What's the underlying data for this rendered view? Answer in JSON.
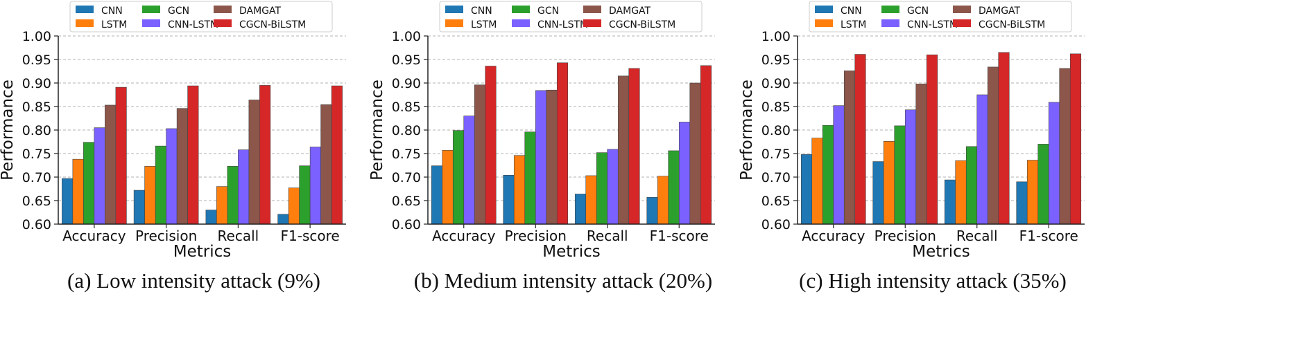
{
  "legend": [
    {
      "name": "CNN",
      "color": "#1f77b4"
    },
    {
      "name": "LSTM",
      "color": "#ff7f0e"
    },
    {
      "name": "GCN",
      "color": "#2ca02c"
    },
    {
      "name": "CNN-LSTM",
      "color": "#7b61ff"
    },
    {
      "name": "DAMGAT",
      "color": "#8c564b"
    },
    {
      "name": "CGCN-BiLSTM",
      "color": "#d62728"
    }
  ],
  "chart_data": [
    {
      "type": "bar",
      "caption": "(a) Low intensity attack (9%)",
      "xlabel": "Metrics",
      "ylabel": "Performance",
      "ylim": [
        0.6,
        1.0
      ],
      "yticks": [
        "0.60",
        "0.65",
        "0.70",
        "0.75",
        "0.80",
        "0.85",
        "0.90",
        "0.95",
        "1.00"
      ],
      "grid": "horizontal dashed",
      "legend_position": "top",
      "categories": [
        "Accuracy",
        "Precision",
        "Recall",
        "F1-score"
      ],
      "series": [
        {
          "name": "CNN",
          "values": [
            0.697,
            0.672,
            0.63,
            0.621
          ]
        },
        {
          "name": "LSTM",
          "values": [
            0.738,
            0.723,
            0.68,
            0.677
          ]
        },
        {
          "name": "GCN",
          "values": [
            0.774,
            0.766,
            0.723,
            0.724
          ]
        },
        {
          "name": "CNN-LSTM",
          "values": [
            0.805,
            0.803,
            0.758,
            0.764
          ]
        },
        {
          "name": "DAMGAT",
          "values": [
            0.853,
            0.846,
            0.864,
            0.854
          ]
        },
        {
          "name": "CGCN-BiLSTM",
          "values": [
            0.891,
            0.894,
            0.895,
            0.894
          ]
        }
      ]
    },
    {
      "type": "bar",
      "caption": "(b) Medium intensity attack (20%)",
      "xlabel": "Metrics",
      "ylabel": "Performance",
      "ylim": [
        0.6,
        1.0
      ],
      "yticks": [
        "0.60",
        "0.65",
        "0.70",
        "0.75",
        "0.80",
        "0.85",
        "0.90",
        "0.95",
        "1.00"
      ],
      "grid": "horizontal dashed",
      "legend_position": "top",
      "categories": [
        "Accuracy",
        "Precision",
        "Recall",
        "F1-score"
      ],
      "series": [
        {
          "name": "CNN",
          "values": [
            0.724,
            0.704,
            0.664,
            0.657
          ]
        },
        {
          "name": "LSTM",
          "values": [
            0.757,
            0.746,
            0.703,
            0.702
          ]
        },
        {
          "name": "GCN",
          "values": [
            0.799,
            0.796,
            0.752,
            0.756
          ]
        },
        {
          "name": "CNN-LSTM",
          "values": [
            0.83,
            0.884,
            0.759,
            0.817
          ]
        },
        {
          "name": "DAMGAT",
          "values": [
            0.896,
            0.885,
            0.915,
            0.9
          ]
        },
        {
          "name": "CGCN-BiLSTM",
          "values": [
            0.936,
            0.943,
            0.931,
            0.937
          ]
        }
      ]
    },
    {
      "type": "bar",
      "caption": "(c) High intensity attack (35%)",
      "xlabel": "Metrics",
      "ylabel": "Performance",
      "ylim": [
        0.6,
        1.0
      ],
      "yticks": [
        "0.60",
        "0.65",
        "0.70",
        "0.75",
        "0.80",
        "0.85",
        "0.90",
        "0.95",
        "1.00"
      ],
      "grid": "horizontal dashed",
      "legend_position": "top",
      "categories": [
        "Accuracy",
        "Precision",
        "Recall",
        "F1-score"
      ],
      "series": [
        {
          "name": "CNN",
          "values": [
            0.748,
            0.733,
            0.694,
            0.69
          ]
        },
        {
          "name": "LSTM",
          "values": [
            0.783,
            0.776,
            0.735,
            0.736
          ]
        },
        {
          "name": "GCN",
          "values": [
            0.81,
            0.809,
            0.765,
            0.77
          ]
        },
        {
          "name": "CNN-LSTM",
          "values": [
            0.852,
            0.843,
            0.875,
            0.859
          ]
        },
        {
          "name": "DAMGAT",
          "values": [
            0.926,
            0.898,
            0.934,
            0.931
          ]
        },
        {
          "name": "CGCN-BiLSTM",
          "values": [
            0.961,
            0.96,
            0.965,
            0.962
          ]
        }
      ]
    }
  ]
}
